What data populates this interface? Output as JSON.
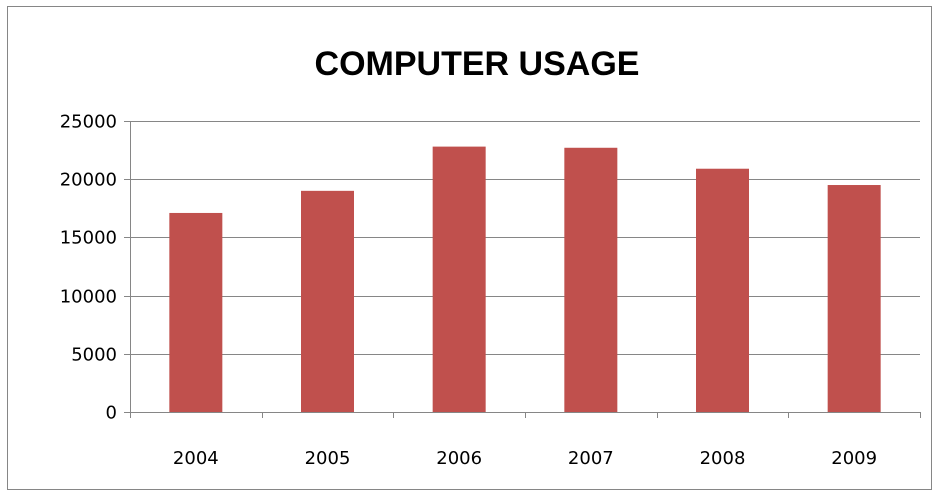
{
  "chart_data": {
    "type": "bar",
    "title": "COMPUTER USAGE",
    "categories": [
      "2004",
      "2005",
      "2006",
      "2007",
      "2008",
      "2009"
    ],
    "values": [
      17100,
      19000,
      22800,
      22700,
      20900,
      19500
    ],
    "ylim": [
      0,
      25000
    ],
    "yticks": [
      "0",
      "5000",
      "10000",
      "15000",
      "20000",
      "25000"
    ],
    "xlabel": "",
    "ylabel": "",
    "grid": true,
    "legend": "none",
    "bar_color": "#C0504D",
    "grid_color": "#868686"
  }
}
